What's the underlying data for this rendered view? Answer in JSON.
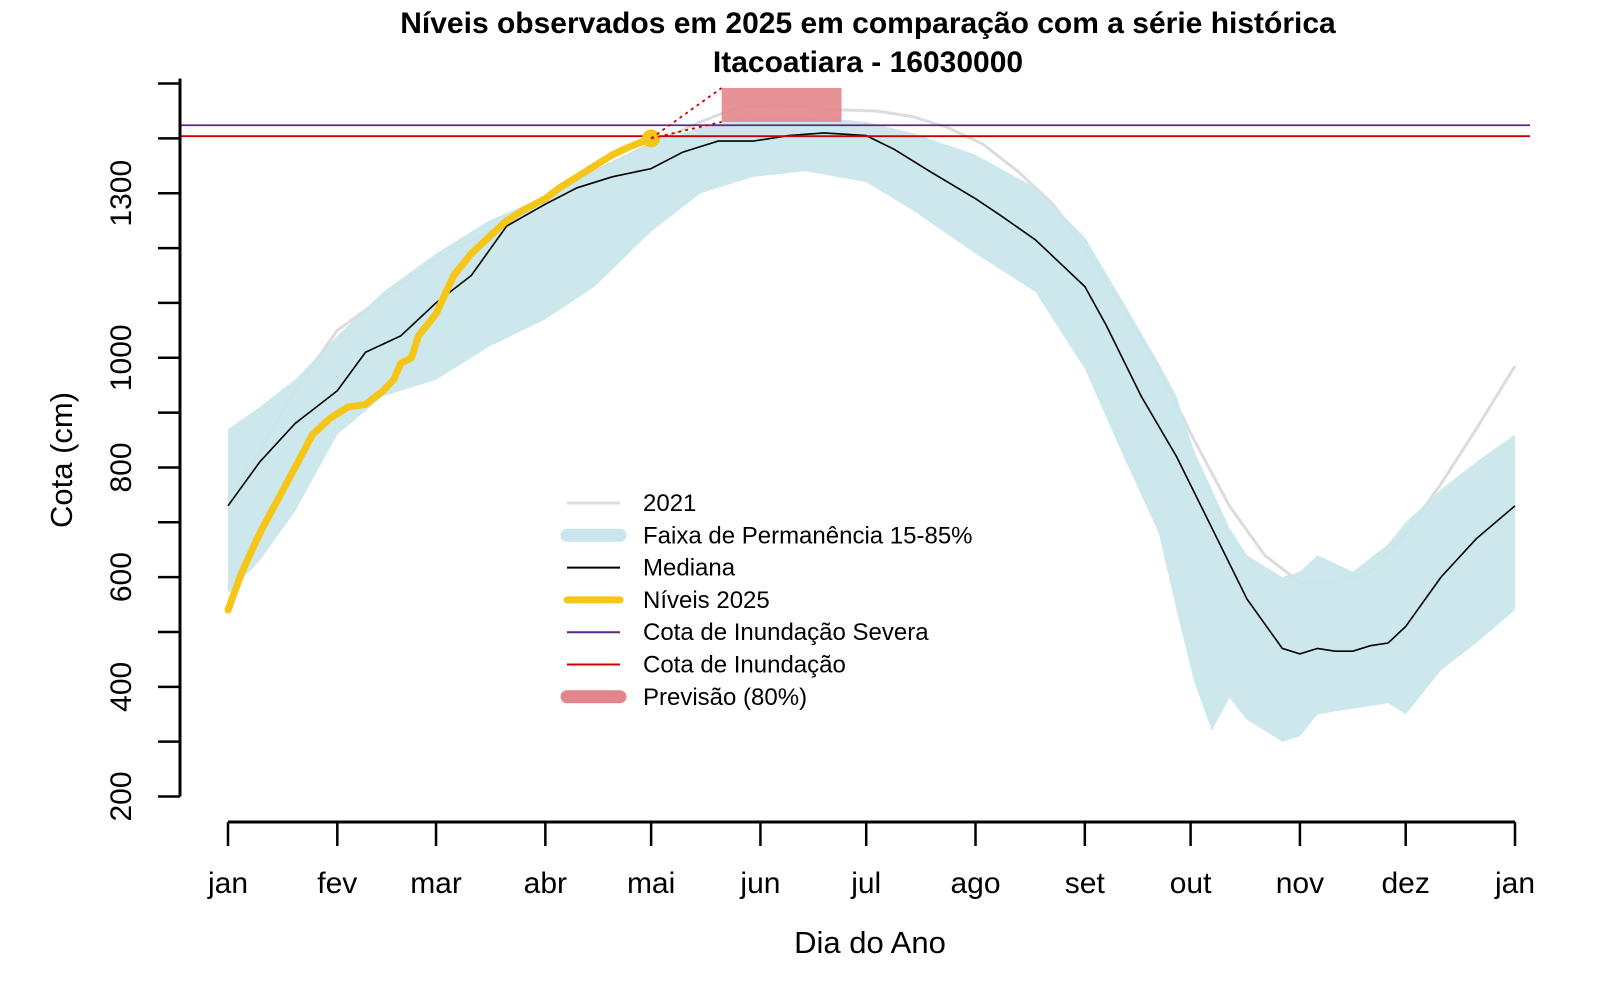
{
  "chart_data": {
    "type": "line",
    "title": "Níveis observados em 2025 em comparação com a série histórica",
    "subtitle": "Itacoatiara - 16030000",
    "xlabel": "Dia do Ano",
    "ylabel": "Cota (cm)",
    "x_ticks": [
      "jan",
      "fev",
      "mar",
      "abr",
      "mai",
      "jun",
      "jul",
      "ago",
      "set",
      "out",
      "nov",
      "dez",
      "jan"
    ],
    "x_tick_days": [
      1,
      32,
      60,
      91,
      121,
      152,
      182,
      213,
      244,
      274,
      305,
      335,
      366
    ],
    "xlim": [
      1,
      366
    ],
    "ylim": [
      190,
      1470
    ],
    "y_ticks": [
      200,
      300,
      400,
      500,
      600,
      700,
      800,
      900,
      1000,
      1100,
      1200,
      1300,
      1400,
      1500
    ],
    "y_tick_labels": [
      200,
      400,
      600,
      800,
      1000,
      1300
    ],
    "legend_position": "center",
    "colors": {
      "year2021": "#dcdcdc",
      "band": "#c8e6ec",
      "median": "#000000",
      "levels2025": "#f5c518",
      "severe": "#5b2a86",
      "flood": "#cc0000",
      "forecast": "#e3868c"
    },
    "legend": [
      {
        "label": "2021",
        "key": "year2021",
        "kind": "line"
      },
      {
        "label": "Faixa de Permanência 15-85%",
        "key": "band",
        "kind": "band"
      },
      {
        "label": "Mediana",
        "key": "median",
        "kind": "line"
      },
      {
        "label": "Níveis 2025",
        "key": "levels2025",
        "kind": "thick"
      },
      {
        "label": "Cota de Inundação Severa",
        "key": "severe",
        "kind": "line"
      },
      {
        "label": "Cota de Inundação",
        "key": "flood",
        "kind": "line"
      },
      {
        "label": "Previsão (80%)",
        "key": "forecast",
        "kind": "band"
      }
    ],
    "series": [
      {
        "name": "2021",
        "x": [
          1,
          10,
          20,
          32,
          45,
          60,
          75,
          91,
          105,
          121,
          135,
          145,
          155,
          165,
          175,
          185,
          195,
          205,
          215,
          225,
          235,
          244,
          255,
          265,
          275,
          285,
          295,
          305,
          315,
          325,
          335,
          345,
          355,
          366
        ],
        "y": [
          740,
          830,
          940,
          1050,
          1110,
          1180,
          1230,
          1290,
          1340,
          1390,
          1430,
          1455,
          1460,
          1457,
          1452,
          1450,
          1440,
          1420,
          1390,
          1340,
          1280,
          1200,
          1090,
          980,
          850,
          730,
          640,
          590,
          590,
          610,
          680,
          770,
          870,
          985
        ]
      },
      {
        "name": "Mediana",
        "x": [
          1,
          10,
          20,
          32,
          40,
          50,
          60,
          70,
          80,
          91,
          100,
          110,
          121,
          130,
          140,
          150,
          160,
          170,
          182,
          190,
          200,
          213,
          220,
          230,
          244,
          250,
          260,
          270,
          280,
          290,
          300,
          305,
          310,
          315,
          320,
          325,
          330,
          335,
          345,
          355,
          366
        ],
        "y": [
          730,
          810,
          880,
          940,
          1010,
          1040,
          1100,
          1150,
          1240,
          1280,
          1310,
          1330,
          1345,
          1375,
          1395,
          1395,
          1405,
          1410,
          1405,
          1380,
          1340,
          1290,
          1260,
          1215,
          1130,
          1060,
          930,
          820,
          690,
          560,
          470,
          460,
          470,
          465,
          465,
          475,
          480,
          510,
          600,
          670,
          730
        ]
      },
      {
        "name": "Níveis 2025",
        "x": [
          1,
          5,
          10,
          15,
          20,
          25,
          30,
          35,
          40,
          45,
          48,
          50,
          53,
          55,
          60,
          65,
          70,
          75,
          80,
          85,
          91,
          95,
          100,
          105,
          110,
          115,
          121
        ],
        "y": [
          540,
          610,
          680,
          740,
          800,
          860,
          890,
          910,
          915,
          940,
          960,
          990,
          1000,
          1040,
          1080,
          1150,
          1190,
          1220,
          1250,
          1270,
          1290,
          1310,
          1330,
          1350,
          1370,
          1385,
          1400
        ]
      }
    ],
    "band": {
      "name": "Faixa de Permanência 15-85%",
      "x": [
        1,
        10,
        20,
        32,
        45,
        60,
        75,
        91,
        105,
        121,
        135,
        150,
        165,
        182,
        195,
        213,
        230,
        244,
        255,
        265,
        270,
        275,
        280,
        285,
        290,
        300,
        305,
        310,
        320,
        330,
        335,
        345,
        355,
        366
      ],
      "upper": [
        870,
        910,
        960,
        1040,
        1120,
        1190,
        1250,
        1295,
        1340,
        1390,
        1420,
        1440,
        1440,
        1430,
        1410,
        1370,
        1310,
        1220,
        1100,
        990,
        930,
        830,
        760,
        690,
        640,
        600,
        610,
        640,
        610,
        660,
        700,
        760,
        810,
        860
      ],
      "lower": [
        570,
        630,
        720,
        860,
        930,
        960,
        1020,
        1070,
        1130,
        1230,
        1300,
        1330,
        1340,
        1320,
        1270,
        1190,
        1120,
        980,
        820,
        680,
        540,
        410,
        320,
        380,
        340,
        300,
        310,
        350,
        360,
        370,
        350,
        430,
        480,
        540
      ]
    },
    "reference_lines": [
      {
        "name": "Cota de Inundação Severa",
        "y": 1424
      },
      {
        "name": "Cota de Inundação",
        "y": 1404
      }
    ],
    "forecast": {
      "name": "Previsão (80%)",
      "x_start": 141,
      "x_end": 175,
      "y_low": 1430,
      "y_high": 1492
    }
  }
}
